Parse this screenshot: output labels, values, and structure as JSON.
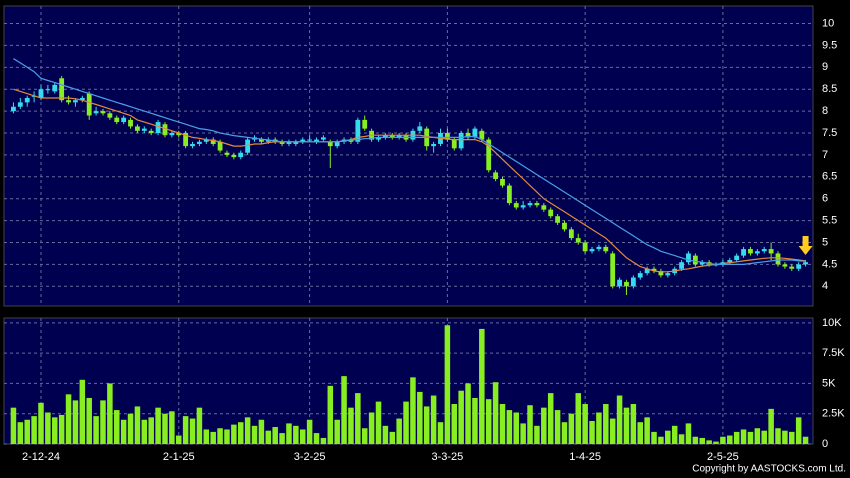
{
  "chart_data": {
    "type": "candlestick",
    "copyright": "Copyright by AASTOCKS.com Ltd.",
    "up_color": "#33ddee",
    "down_color": "#88ee22",
    "categories": [
      null,
      null,
      null,
      null,
      "2-12-24",
      null,
      null,
      null,
      null,
      null,
      null,
      null,
      null,
      null,
      null,
      null,
      null,
      null,
      null,
      null,
      null,
      null,
      null,
      null,
      "2-1-25",
      null,
      null,
      null,
      null,
      null,
      null,
      null,
      null,
      null,
      null,
      null,
      null,
      null,
      null,
      null,
      null,
      null,
      null,
      "3-2-25",
      null,
      null,
      null,
      null,
      null,
      null,
      null,
      null,
      null,
      null,
      null,
      null,
      null,
      null,
      null,
      null,
      null,
      null,
      null,
      "3-3-25",
      null,
      null,
      null,
      null,
      null,
      null,
      null,
      null,
      null,
      null,
      null,
      null,
      null,
      null,
      null,
      null,
      null,
      null,
      null,
      "1-4-25",
      null,
      null,
      null,
      null,
      null,
      null,
      null,
      null,
      null,
      null,
      null,
      null,
      null,
      null,
      null,
      null,
      null,
      null,
      null,
      "2-5-25",
      null,
      null,
      null,
      null,
      null,
      null,
      null,
      null,
      null,
      null,
      null,
      null
    ],
    "ylim": [
      3.55,
      10.4
    ],
    "yticks": [
      4,
      4.5,
      5,
      5.5,
      6,
      6.5,
      7,
      7.5,
      8,
      8.5,
      9,
      9.5,
      10
    ],
    "grid": true,
    "ohlc": [
      [
        8.0,
        8.2,
        7.95,
        8.1
      ],
      [
        8.1,
        8.3,
        8.05,
        8.2
      ],
      [
        8.2,
        8.35,
        8.1,
        8.3
      ],
      [
        8.35,
        8.45,
        8.2,
        8.35
      ],
      [
        8.3,
        8.6,
        8.25,
        8.5
      ],
      [
        8.5,
        8.6,
        8.4,
        8.5
      ],
      [
        8.45,
        8.65,
        8.4,
        8.6
      ],
      [
        8.75,
        8.8,
        8.2,
        8.25
      ],
      [
        8.25,
        8.35,
        8.15,
        8.2
      ],
      [
        8.2,
        8.3,
        8.1,
        8.25
      ],
      [
        8.25,
        8.35,
        8.2,
        8.3
      ],
      [
        8.4,
        8.45,
        7.8,
        7.9
      ],
      [
        7.95,
        8.1,
        7.9,
        8.0
      ],
      [
        8.0,
        8.05,
        7.9,
        7.95
      ],
      [
        7.95,
        8.0,
        7.8,
        7.85
      ],
      [
        7.85,
        7.9,
        7.7,
        7.75
      ],
      [
        7.75,
        7.9,
        7.7,
        7.85
      ],
      [
        7.8,
        7.85,
        7.6,
        7.65
      ],
      [
        7.65,
        7.7,
        7.5,
        7.55
      ],
      [
        7.55,
        7.65,
        7.5,
        7.6
      ],
      [
        7.55,
        7.6,
        7.45,
        7.5
      ],
      [
        7.5,
        7.8,
        7.45,
        7.75
      ],
      [
        7.7,
        7.75,
        7.4,
        7.45
      ],
      [
        7.45,
        7.55,
        7.4,
        7.5
      ],
      [
        7.5,
        7.55,
        7.4,
        7.45
      ],
      [
        7.5,
        7.55,
        7.15,
        7.2
      ],
      [
        7.2,
        7.3,
        7.15,
        7.25
      ],
      [
        7.25,
        7.35,
        7.2,
        7.3
      ],
      [
        7.3,
        7.4,
        7.25,
        7.35
      ],
      [
        7.35,
        7.4,
        7.2,
        7.25
      ],
      [
        7.3,
        7.35,
        7.05,
        7.1
      ],
      [
        7.05,
        7.1,
        6.95,
        7.0
      ],
      [
        7.0,
        7.05,
        6.9,
        6.95
      ],
      [
        6.95,
        7.1,
        6.9,
        7.05
      ],
      [
        7.05,
        7.4,
        7.0,
        7.35
      ],
      [
        7.35,
        7.45,
        7.3,
        7.4
      ],
      [
        7.35,
        7.4,
        7.25,
        7.3
      ],
      [
        7.3,
        7.4,
        7.25,
        7.35
      ],
      [
        7.35,
        7.4,
        7.25,
        7.3
      ],
      [
        7.3,
        7.35,
        7.2,
        7.25
      ],
      [
        7.25,
        7.35,
        7.2,
        7.3
      ],
      [
        7.25,
        7.35,
        7.2,
        7.3
      ],
      [
        7.3,
        7.4,
        7.25,
        7.35
      ],
      [
        7.35,
        7.45,
        7.3,
        7.35
      ],
      [
        7.3,
        7.4,
        7.25,
        7.35
      ],
      [
        7.35,
        7.45,
        7.3,
        7.4
      ],
      [
        7.3,
        7.35,
        6.7,
        7.2
      ],
      [
        7.2,
        7.35,
        7.15,
        7.3
      ],
      [
        7.3,
        7.4,
        7.25,
        7.35
      ],
      [
        7.35,
        7.4,
        7.25,
        7.3
      ],
      [
        7.3,
        7.85,
        7.25,
        7.8
      ],
      [
        7.8,
        7.9,
        7.55,
        7.6
      ],
      [
        7.55,
        7.6,
        7.3,
        7.35
      ],
      [
        7.35,
        7.45,
        7.3,
        7.4
      ],
      [
        7.4,
        7.5,
        7.35,
        7.45
      ],
      [
        7.45,
        7.5,
        7.35,
        7.4
      ],
      [
        7.4,
        7.5,
        7.35,
        7.45
      ],
      [
        7.45,
        7.5,
        7.3,
        7.35
      ],
      [
        7.35,
        7.6,
        7.3,
        7.55
      ],
      [
        7.55,
        7.75,
        7.5,
        7.65
      ],
      [
        7.6,
        7.65,
        7.1,
        7.2
      ],
      [
        7.2,
        7.3,
        7.05,
        7.25
      ],
      [
        7.25,
        7.6,
        7.2,
        7.5
      ],
      [
        7.5,
        7.6,
        7.3,
        7.35
      ],
      [
        7.35,
        7.4,
        7.1,
        7.15
      ],
      [
        7.15,
        7.55,
        7.1,
        7.5
      ],
      [
        7.5,
        7.6,
        7.35,
        7.4
      ],
      [
        7.4,
        7.65,
        7.35,
        7.6
      ],
      [
        7.55,
        7.6,
        7.3,
        7.35
      ],
      [
        7.35,
        7.4,
        6.6,
        6.65
      ],
      [
        6.6,
        6.65,
        6.4,
        6.45
      ],
      [
        6.45,
        6.5,
        6.25,
        6.3
      ],
      [
        6.3,
        6.35,
        5.85,
        5.9
      ],
      [
        5.9,
        5.95,
        5.75,
        5.8
      ],
      [
        5.8,
        5.95,
        5.75,
        5.85
      ],
      [
        5.85,
        5.95,
        5.8,
        5.9
      ],
      [
        5.9,
        5.95,
        5.8,
        5.85
      ],
      [
        5.85,
        5.9,
        5.7,
        5.75
      ],
      [
        5.75,
        5.8,
        5.55,
        5.6
      ],
      [
        5.6,
        5.65,
        5.4,
        5.45
      ],
      [
        5.45,
        5.5,
        5.25,
        5.3
      ],
      [
        5.3,
        5.35,
        5.05,
        5.1
      ],
      [
        5.1,
        5.2,
        4.95,
        5.0
      ],
      [
        5.0,
        5.05,
        4.75,
        4.8
      ],
      [
        4.8,
        4.9,
        4.75,
        4.85
      ],
      [
        4.85,
        4.95,
        4.8,
        4.9
      ],
      [
        4.9,
        4.95,
        4.75,
        4.8
      ],
      [
        4.75,
        4.8,
        3.95,
        4.0
      ],
      [
        4.0,
        4.2,
        3.95,
        4.15
      ],
      [
        4.1,
        4.15,
        3.8,
        4.0
      ],
      [
        4.0,
        4.25,
        3.95,
        4.2
      ],
      [
        4.2,
        4.35,
        4.15,
        4.3
      ],
      [
        4.3,
        4.45,
        4.25,
        4.4
      ],
      [
        4.4,
        4.45,
        4.3,
        4.35
      ],
      [
        4.35,
        4.4,
        4.2,
        4.25
      ],
      [
        4.25,
        4.35,
        4.2,
        4.3
      ],
      [
        4.3,
        4.45,
        4.25,
        4.4
      ],
      [
        4.4,
        4.6,
        4.35,
        4.55
      ],
      [
        4.55,
        4.8,
        4.5,
        4.75
      ],
      [
        4.7,
        4.75,
        4.45,
        4.5
      ],
      [
        4.5,
        4.6,
        4.45,
        4.55
      ],
      [
        4.55,
        4.6,
        4.45,
        4.5
      ],
      [
        4.5,
        4.55,
        4.45,
        4.5
      ],
      [
        4.5,
        4.6,
        4.45,
        4.55
      ],
      [
        4.55,
        4.65,
        4.5,
        4.6
      ],
      [
        4.6,
        4.75,
        4.55,
        4.7
      ],
      [
        4.7,
        4.9,
        4.65,
        4.85
      ],
      [
        4.85,
        4.9,
        4.7,
        4.75
      ],
      [
        4.75,
        4.85,
        4.7,
        4.8
      ],
      [
        4.8,
        4.9,
        4.75,
        4.85
      ],
      [
        4.85,
        5.0,
        4.6,
        4.75
      ],
      [
        4.75,
        4.8,
        4.45,
        4.5
      ],
      [
        4.5,
        4.55,
        4.4,
        4.45
      ],
      [
        4.45,
        4.5,
        4.35,
        4.4
      ],
      [
        4.4,
        4.55,
        4.35,
        4.5
      ],
      [
        4.5,
        4.6,
        4.45,
        4.55
      ]
    ],
    "ma": [
      {
        "color": "#e8883a",
        "values": [
          8.5,
          8.45,
          8.4,
          8.35,
          8.3,
          8.3,
          8.3,
          8.3,
          8.3,
          8.28,
          8.25,
          8.2,
          8.15,
          8.1,
          8.05,
          8.0,
          7.95,
          7.9,
          7.8,
          7.75,
          7.7,
          7.65,
          7.6,
          7.55,
          7.5,
          7.45,
          7.4,
          7.38,
          7.35,
          7.33,
          7.3,
          7.25,
          7.2,
          7.2,
          7.22,
          7.25,
          7.25,
          7.28,
          7.3,
          7.3,
          7.3,
          7.3,
          7.3,
          7.3,
          7.3,
          7.3,
          7.3,
          7.3,
          7.32,
          7.35,
          7.4,
          7.42,
          7.45,
          7.45,
          7.45,
          7.45,
          7.45,
          7.45,
          7.45,
          7.45,
          7.42,
          7.4,
          7.38,
          7.36,
          7.35,
          7.35,
          7.35,
          7.35,
          7.3,
          7.2,
          7.05,
          6.9,
          6.75,
          6.6,
          6.45,
          6.3,
          6.15,
          6.0,
          5.9,
          5.8,
          5.7,
          5.6,
          5.5,
          5.4,
          5.3,
          5.2,
          5.1,
          4.95,
          4.8,
          4.65,
          4.55,
          4.45,
          4.4,
          4.35,
          4.33,
          4.33,
          4.35,
          4.38,
          4.4,
          4.43,
          4.46,
          4.48,
          4.5,
          4.52,
          4.54,
          4.56,
          4.58,
          4.6,
          4.62,
          4.64,
          4.65,
          4.65,
          4.64,
          4.62,
          4.6,
          4.58
        ]
      },
      {
        "color": "#4aa0e8",
        "values": [
          9.2,
          9.1,
          9.0,
          8.9,
          8.75,
          8.7,
          8.65,
          8.6,
          8.55,
          8.5,
          8.45,
          8.4,
          8.35,
          8.3,
          8.25,
          8.2,
          8.15,
          8.1,
          8.05,
          8.0,
          7.95,
          7.9,
          7.85,
          7.8,
          7.75,
          7.7,
          7.65,
          7.6,
          7.58,
          7.55,
          7.5,
          7.47,
          7.44,
          7.42,
          7.4,
          7.38,
          7.36,
          7.34,
          7.32,
          7.3,
          7.3,
          7.3,
          7.3,
          7.3,
          7.3,
          7.3,
          7.3,
          7.3,
          7.32,
          7.34,
          7.35,
          7.37,
          7.38,
          7.4,
          7.4,
          7.4,
          7.4,
          7.4,
          7.4,
          7.4,
          7.4,
          7.4,
          7.4,
          7.4,
          7.4,
          7.4,
          7.42,
          7.42,
          7.35,
          7.25,
          7.15,
          7.05,
          6.95,
          6.85,
          6.75,
          6.65,
          6.55,
          6.45,
          6.35,
          6.25,
          6.15,
          6.05,
          5.95,
          5.85,
          5.75,
          5.65,
          5.55,
          5.45,
          5.35,
          5.25,
          5.15,
          5.05,
          4.95,
          4.88,
          4.8,
          4.75,
          4.7,
          4.65,
          4.6,
          4.57,
          4.55,
          4.52,
          4.5,
          4.5,
          4.5,
          4.5,
          4.5,
          4.52,
          4.54,
          4.56,
          4.58,
          4.6,
          4.6,
          4.6,
          4.58,
          4.57
        ]
      }
    ],
    "volume": {
      "color": "#88ee22",
      "ylim": [
        0,
        10400
      ],
      "yticks": [
        0,
        {
          "value": 2500,
          "label": "2.5K"
        },
        {
          "value": 5000,
          "label": "5K"
        },
        {
          "value": 7500,
          "label": "7.5K"
        },
        {
          "value": 10000,
          "label": "10K"
        }
      ],
      "values": [
        3000,
        1800,
        2000,
        2300,
        3400,
        2600,
        2200,
        2400,
        4100,
        3600,
        5300,
        3800,
        2300,
        3600,
        5000,
        2800,
        2000,
        2500,
        3100,
        2000,
        2200,
        3000,
        2500,
        2700,
        700,
        2300,
        2100,
        3000,
        1200,
        1000,
        1300,
        1200,
        1600,
        1800,
        2200,
        1500,
        2000,
        1100,
        1400,
        900,
        1700,
        1500,
        1200,
        2000,
        900,
        500,
        4800,
        2000,
        5600,
        3000,
        4200,
        1300,
        2600,
        3500,
        1500,
        1000,
        2100,
        3500,
        5500,
        4300,
        3100,
        4000,
        1800,
        9800,
        3300,
        4400,
        5000,
        3800,
        9500,
        3700,
        5100,
        3300,
        2800,
        2600,
        1700,
        3200,
        1500,
        3000,
        4200,
        2800,
        1800,
        2500,
        4200,
        3300,
        1900,
        2600,
        3300,
        2100,
        4000,
        3000,
        3300,
        1800,
        2200,
        1000,
        600,
        1100,
        1500,
        800,
        1700,
        600,
        500,
        300,
        200,
        600,
        700,
        1000,
        1200,
        1000,
        1300,
        1100,
        2900,
        1300,
        1100,
        1000,
        2200,
        600
      ]
    }
  }
}
